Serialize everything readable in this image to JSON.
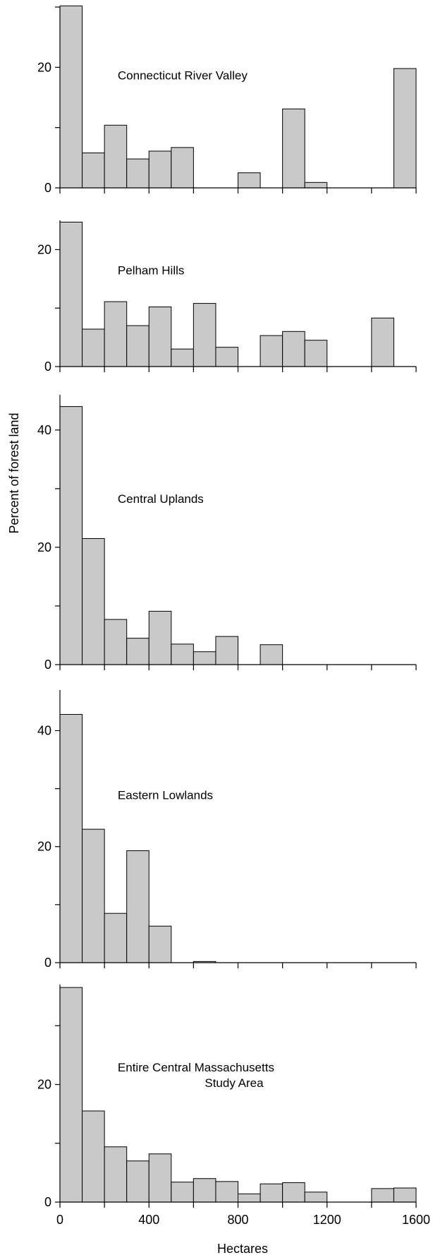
{
  "chart_data": {
    "type": "bar",
    "xlabel": "Hectares",
    "ylabel": "Percent of forest land",
    "bin_width": 100,
    "xlim": [
      0,
      1600
    ],
    "x_ticks": [
      "0",
      "400",
      "800",
      "1200",
      "1600"
    ],
    "x_tick_values": [
      0,
      400,
      800,
      1200,
      1600
    ],
    "bar_color": "#c9c9c9",
    "panels": [
      {
        "title_lines": [
          "Connecticut River Valley"
        ],
        "ylim": [
          0,
          30
        ],
        "y_ticks": [
          0,
          20
        ],
        "y_tick_labels": [
          "0",
          "20"
        ],
        "y_minor_step": 10,
        "bin_starts": [
          0,
          100,
          200,
          300,
          400,
          500,
          800,
          1000,
          1100,
          1500
        ],
        "values": [
          30.2,
          5.8,
          10.4,
          4.8,
          6.1,
          6.7,
          2.5,
          13.1,
          0.9,
          19.8
        ]
      },
      {
        "title_lines": [
          "Pelham Hills"
        ],
        "ylim": [
          0,
          25
        ],
        "y_ticks": [
          0,
          20
        ],
        "y_tick_labels": [
          "0",
          "20"
        ],
        "y_minor_step": 10,
        "bin_starts": [
          0,
          100,
          200,
          300,
          400,
          500,
          600,
          700,
          900,
          1000,
          1100,
          1400
        ],
        "values": [
          24.7,
          6.4,
          11.1,
          7.0,
          10.2,
          3.0,
          10.8,
          3.3,
          5.3,
          6.0,
          4.5,
          8.3
        ]
      },
      {
        "title_lines": [
          "Central Uplands"
        ],
        "ylim": [
          0,
          46
        ],
        "y_ticks": [
          0,
          20,
          40
        ],
        "y_tick_labels": [
          "0",
          "20",
          "40"
        ],
        "y_minor_step": 10,
        "bin_starts": [
          0,
          100,
          200,
          300,
          400,
          500,
          600,
          700,
          900
        ],
        "values": [
          44.0,
          21.5,
          7.7,
          4.5,
          9.1,
          3.5,
          2.2,
          4.8,
          3.4
        ]
      },
      {
        "title_lines": [
          "Eastern Lowlands"
        ],
        "ylim": [
          0,
          47
        ],
        "y_ticks": [
          0,
          20,
          40
        ],
        "y_tick_labels": [
          "0",
          "20",
          "40"
        ],
        "y_minor_step": 10,
        "bin_starts": [
          0,
          100,
          200,
          300,
          400,
          600
        ],
        "values": [
          42.8,
          23.0,
          8.5,
          19.3,
          6.3,
          0.2
        ]
      },
      {
        "title_lines": [
          "Entire Central Massachusetts",
          "Study Area"
        ],
        "ylim": [
          0,
          37
        ],
        "y_ticks": [
          0,
          20
        ],
        "y_tick_labels": [
          "0",
          "20"
        ],
        "y_minor_step": 10,
        "bin_starts": [
          0,
          100,
          200,
          300,
          400,
          500,
          600,
          700,
          800,
          900,
          1000,
          1100,
          1400,
          1500
        ],
        "values": [
          36.5,
          15.5,
          9.4,
          7.0,
          8.2,
          3.4,
          4.0,
          3.5,
          1.4,
          3.1,
          3.3,
          1.7,
          2.3,
          2.4
        ]
      }
    ]
  }
}
